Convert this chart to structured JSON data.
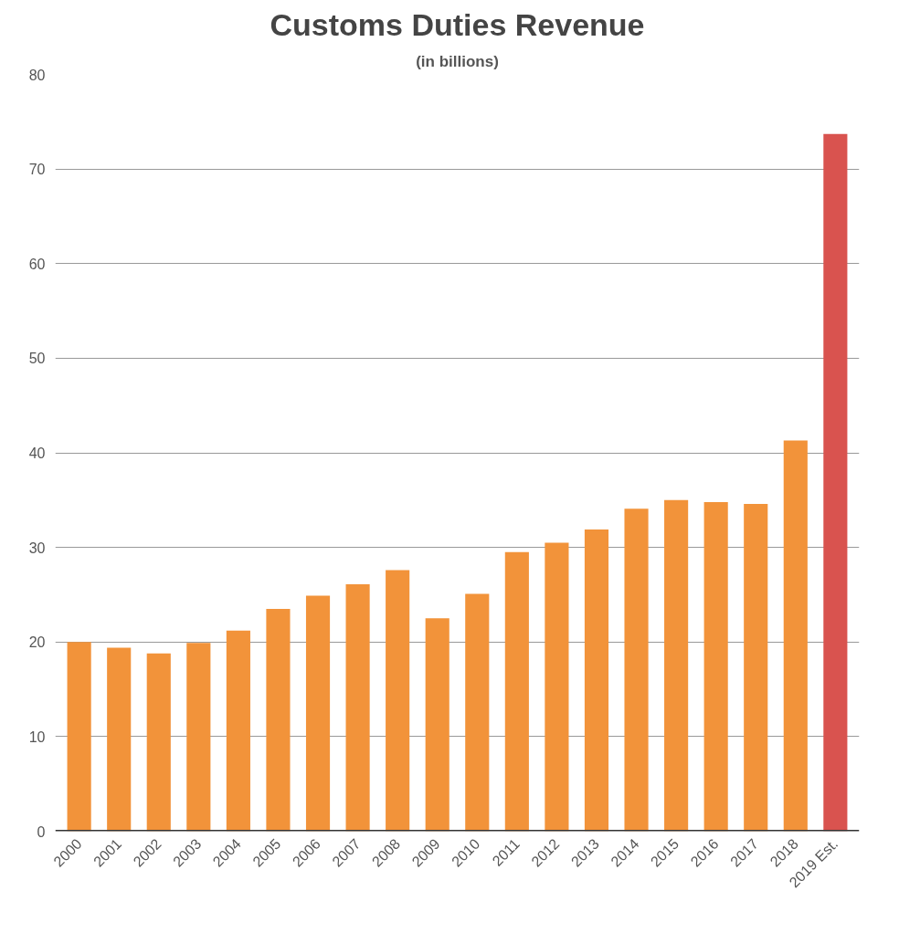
{
  "chart_data": {
    "type": "bar",
    "title": "Customs Duties Revenue",
    "subtitle": "(in billions)",
    "categories": [
      "2000",
      "2001",
      "2002",
      "2003",
      "2004",
      "2005",
      "2006",
      "2007",
      "2008",
      "2009",
      "2010",
      "2011",
      "2012",
      "2013",
      "2014",
      "2015",
      "2016",
      "2017",
      "2018",
      "2019 Est."
    ],
    "values": [
      20.0,
      19.4,
      18.8,
      19.9,
      21.2,
      23.5,
      24.9,
      26.1,
      27.6,
      22.5,
      25.1,
      29.5,
      30.5,
      31.9,
      34.1,
      35.0,
      34.8,
      34.6,
      41.3,
      73.7
    ],
    "colors": [
      "#f2933a",
      "#f2933a",
      "#f2933a",
      "#f2933a",
      "#f2933a",
      "#f2933a",
      "#f2933a",
      "#f2933a",
      "#f2933a",
      "#f2933a",
      "#f2933a",
      "#f2933a",
      "#f2933a",
      "#f2933a",
      "#f2933a",
      "#f2933a",
      "#f2933a",
      "#f2933a",
      "#f2933a",
      "#d9534f"
    ],
    "ylim": [
      0,
      80
    ],
    "yticks": [
      0,
      10,
      20,
      30,
      40,
      50,
      60,
      70,
      80
    ],
    "grid": "y"
  }
}
